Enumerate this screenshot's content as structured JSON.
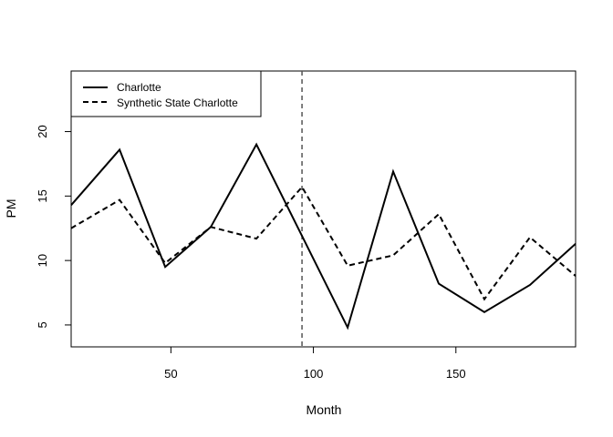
{
  "chart_data": {
    "type": "line",
    "xlabel": "Month",
    "ylabel": "PM",
    "xlim": [
      15,
      192
    ],
    "ylim": [
      3.3,
      24.7
    ],
    "xticks": [
      50,
      100,
      150
    ],
    "yticks": [
      5,
      10,
      15,
      20
    ],
    "intervention_x": 96,
    "legend_position": "top-left",
    "series": [
      {
        "name": "Charlotte",
        "style": "solid",
        "color": "#000000",
        "x": [
          15,
          32,
          48,
          64,
          80,
          96,
          112,
          128,
          144,
          160,
          176,
          192
        ],
        "y": [
          14.3,
          18.6,
          9.5,
          12.6,
          19.0,
          11.9,
          4.8,
          16.9,
          8.2,
          6.0,
          8.1,
          11.3
        ]
      },
      {
        "name": "Synthetic State Charlotte",
        "style": "dashed",
        "color": "#000000",
        "x": [
          15,
          32,
          48,
          64,
          80,
          96,
          112,
          128,
          144,
          160,
          176,
          192
        ],
        "y": [
          12.5,
          14.7,
          9.8,
          12.6,
          11.7,
          15.7,
          9.6,
          10.4,
          13.6,
          7.0,
          11.8,
          8.8
        ]
      }
    ]
  }
}
